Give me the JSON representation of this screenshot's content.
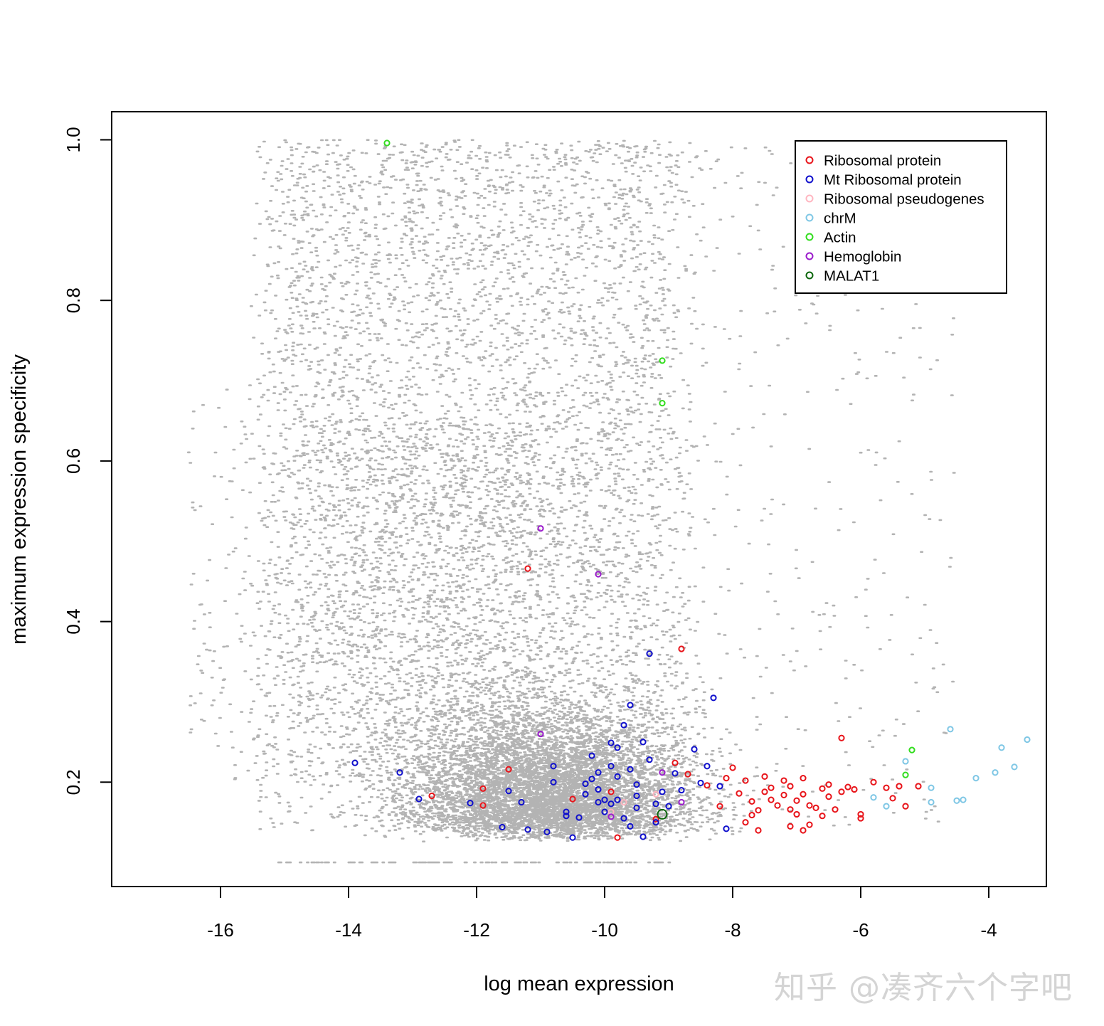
{
  "watermark": "知乎 @凑齐六个字吧",
  "chart_data": {
    "type": "scatter",
    "xlabel": "log mean expression",
    "ylabel": "maximum expression specificity",
    "xlim": [
      -17.7,
      -3.1
    ],
    "ylim": [
      0.07,
      1.035
    ],
    "x_ticks": [
      -16,
      -14,
      -12,
      -10,
      -8,
      -6,
      -4
    ],
    "y_ticks": [
      0.2,
      0.4,
      0.6,
      0.8,
      1.0
    ],
    "x_tick_labels": [
      "-16",
      "-14",
      "-12",
      "-10",
      "-8",
      "-6",
      "-4"
    ],
    "y_tick_labels": [
      "0.2",
      "0.4",
      "0.6",
      "0.8",
      "1.0"
    ],
    "legend_position": "top-right",
    "background_points": {
      "color": "#b3b3b3",
      "approx_count": 13000,
      "x_range": [
        -16.7,
        -3.5
      ],
      "y_range": [
        0.1,
        1.0
      ],
      "note_shape": "dense near y 0.15-0.30 at x -13 to -8; sparse above"
    },
    "series": [
      {
        "name": "Ribosomal protein",
        "color": "#e8141a",
        "points": [
          [
            -11.2,
            0.466
          ],
          [
            -8.8,
            0.366
          ],
          [
            -6.3,
            0.255
          ],
          [
            -11.5,
            0.216
          ],
          [
            -11.9,
            0.192
          ],
          [
            -11.9,
            0.171
          ],
          [
            -12.7,
            0.183
          ],
          [
            -10.5,
            0.179
          ],
          [
            -9.9,
            0.188
          ],
          [
            -9.8,
            0.131
          ],
          [
            -9.2,
            0.154
          ],
          [
            -8.9,
            0.224
          ],
          [
            -8.7,
            0.21
          ],
          [
            -8.4,
            0.196
          ],
          [
            -8.2,
            0.17
          ],
          [
            -8.0,
            0.218
          ],
          [
            -7.9,
            0.186
          ],
          [
            -7.8,
            0.202
          ],
          [
            -7.7,
            0.176
          ],
          [
            -7.7,
            0.159
          ],
          [
            -7.6,
            0.165
          ],
          [
            -7.5,
            0.188
          ],
          [
            -7.5,
            0.207
          ],
          [
            -7.4,
            0.193
          ],
          [
            -7.4,
            0.178
          ],
          [
            -7.3,
            0.171
          ],
          [
            -7.2,
            0.202
          ],
          [
            -7.2,
            0.184
          ],
          [
            -7.1,
            0.195
          ],
          [
            -7.1,
            0.166
          ],
          [
            -7.0,
            0.177
          ],
          [
            -7.0,
            0.16
          ],
          [
            -6.9,
            0.205
          ],
          [
            -6.9,
            0.185
          ],
          [
            -6.8,
            0.171
          ],
          [
            -6.8,
            0.147
          ],
          [
            -6.7,
            0.168
          ],
          [
            -6.6,
            0.192
          ],
          [
            -6.6,
            0.158
          ],
          [
            -6.5,
            0.182
          ],
          [
            -6.5,
            0.197
          ],
          [
            -6.4,
            0.166
          ],
          [
            -6.3,
            0.188
          ],
          [
            -6.2,
            0.194
          ],
          [
            -6.1,
            0.191
          ],
          [
            -6.0,
            0.16
          ],
          [
            -6.0,
            0.155
          ],
          [
            -5.8,
            0.2
          ],
          [
            -5.6,
            0.193
          ],
          [
            -5.5,
            0.18
          ],
          [
            -5.4,
            0.195
          ],
          [
            -5.3,
            0.17
          ],
          [
            -5.1,
            0.195
          ],
          [
            -7.6,
            0.14
          ],
          [
            -7.8,
            0.15
          ],
          [
            -7.1,
            0.145
          ],
          [
            -6.9,
            0.14
          ],
          [
            -8.1,
            0.205
          ]
        ]
      },
      {
        "name": "Mt Ribosomal protein",
        "color": "#1010cc",
        "points": [
          [
            -13.9,
            0.224
          ],
          [
            -13.2,
            0.212
          ],
          [
            -12.9,
            0.179
          ],
          [
            -12.1,
            0.174
          ],
          [
            -11.5,
            0.189
          ],
          [
            -11.6,
            0.144
          ],
          [
            -11.2,
            0.141
          ],
          [
            -11.3,
            0.175
          ],
          [
            -10.9,
            0.138
          ],
          [
            -10.8,
            0.22
          ],
          [
            -10.8,
            0.2
          ],
          [
            -10.6,
            0.163
          ],
          [
            -10.5,
            0.131
          ],
          [
            -10.4,
            0.156
          ],
          [
            -10.3,
            0.185
          ],
          [
            -10.2,
            0.233
          ],
          [
            -10.2,
            0.204
          ],
          [
            -10.1,
            0.191
          ],
          [
            -10.0,
            0.178
          ],
          [
            -10.0,
            0.163
          ],
          [
            -9.9,
            0.249
          ],
          [
            -9.9,
            0.22
          ],
          [
            -9.8,
            0.207
          ],
          [
            -9.8,
            0.178
          ],
          [
            -9.7,
            0.155
          ],
          [
            -9.7,
            0.271
          ],
          [
            -9.6,
            0.296
          ],
          [
            -9.6,
            0.216
          ],
          [
            -9.5,
            0.183
          ],
          [
            -9.5,
            0.197
          ],
          [
            -9.4,
            0.25
          ],
          [
            -9.3,
            0.36
          ],
          [
            -9.3,
            0.228
          ],
          [
            -9.2,
            0.173
          ],
          [
            -9.2,
            0.15
          ],
          [
            -9.1,
            0.188
          ],
          [
            -9.0,
            0.17
          ],
          [
            -8.9,
            0.211
          ],
          [
            -8.8,
            0.19
          ],
          [
            -8.6,
            0.241
          ],
          [
            -8.5,
            0.199
          ],
          [
            -8.3,
            0.305
          ],
          [
            -8.2,
            0.195
          ],
          [
            -8.1,
            0.142
          ],
          [
            -8.4,
            0.22
          ],
          [
            -10.3,
            0.198
          ],
          [
            -10.1,
            0.175
          ],
          [
            -9.6,
            0.145
          ],
          [
            -9.4,
            0.132
          ],
          [
            -9.9,
            0.173
          ],
          [
            -10.6,
            0.158
          ],
          [
            -9.5,
            0.168
          ],
          [
            -9.8,
            0.243
          ],
          [
            -10.1,
            0.212
          ]
        ]
      },
      {
        "name": "Ribosomal pseudogenes",
        "color": "#ffb6c1",
        "points": [
          [
            -9.9,
            0.163
          ],
          [
            -9.7,
            0.175
          ],
          [
            -9.2,
            0.185
          ]
        ]
      },
      {
        "name": "chrM",
        "color": "#7fc7e5",
        "points": [
          [
            -5.3,
            0.226
          ],
          [
            -5.8,
            0.181
          ],
          [
            -5.6,
            0.17
          ],
          [
            -4.9,
            0.193
          ],
          [
            -4.9,
            0.175
          ],
          [
            -4.6,
            0.266
          ],
          [
            -4.5,
            0.177
          ],
          [
            -4.4,
            0.178
          ],
          [
            -4.2,
            0.205
          ],
          [
            -3.9,
            0.212
          ],
          [
            -3.8,
            0.243
          ],
          [
            -3.6,
            0.219
          ],
          [
            -3.4,
            0.253
          ]
        ]
      },
      {
        "name": "Actin",
        "color": "#32dd1e",
        "points": [
          [
            -13.4,
            0.996
          ],
          [
            -9.1,
            0.725
          ],
          [
            -9.1,
            0.672
          ],
          [
            -5.2,
            0.24
          ],
          [
            -5.3,
            0.209
          ]
        ]
      },
      {
        "name": "Hemoglobin",
        "color": "#9b1ccc",
        "points": [
          [
            -11.0,
            0.516
          ],
          [
            -10.1,
            0.459
          ],
          [
            -11.0,
            0.26
          ],
          [
            -9.1,
            0.212
          ],
          [
            -9.9,
            0.157
          ],
          [
            -8.8,
            0.175
          ]
        ]
      },
      {
        "name": "MALAT1",
        "color": "#0c660c",
        "points": [
          [
            -9.1,
            0.16
          ]
        ]
      }
    ]
  }
}
